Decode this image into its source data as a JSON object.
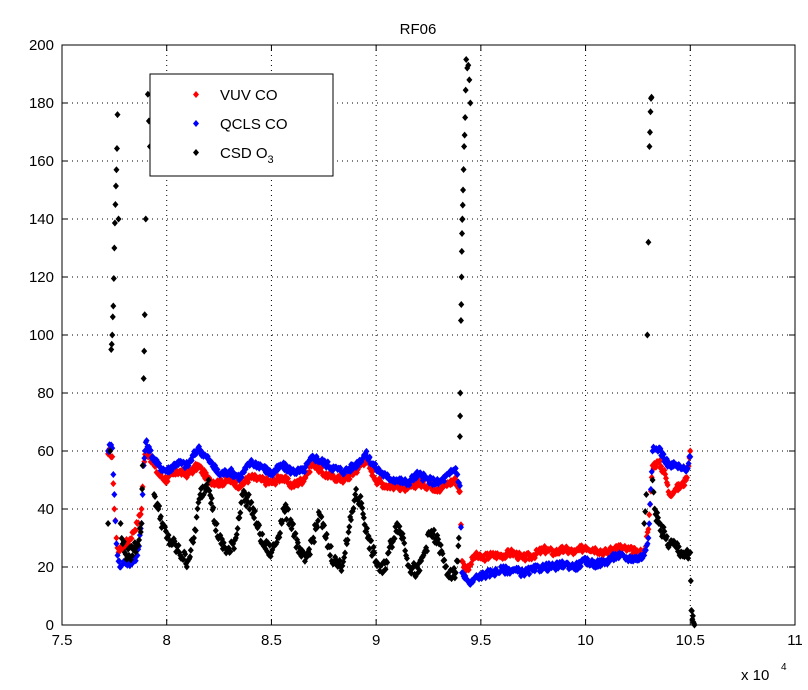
{
  "chart_data": {
    "type": "scatter",
    "title": "RF06",
    "xlabel": "",
    "ylabel": "",
    "x_multiplier_label": "x 10",
    "x_multiplier_exponent": "4",
    "xlim": [
      7.5,
      11
    ],
    "ylim": [
      0,
      200
    ],
    "xticks": [
      7.5,
      8,
      8.5,
      9,
      9.5,
      10,
      10.5,
      11
    ],
    "yticks": [
      0,
      20,
      40,
      60,
      80,
      100,
      120,
      140,
      160,
      180,
      200
    ],
    "xtick_labels": [
      "7.5",
      "8",
      "8.5",
      "9",
      "9.5",
      "10",
      "10.5",
      "11"
    ],
    "ytick_labels": [
      "0",
      "20",
      "40",
      "60",
      "80",
      "100",
      "120",
      "140",
      "160",
      "180",
      "200"
    ],
    "grid": true,
    "legend_position": "top-left",
    "legend": [
      {
        "label": "VUV CO",
        "color": "#ff0000"
      },
      {
        "label": "QCLS CO",
        "color": "#0000ff"
      },
      {
        "label": "CSD O",
        "subscript": "3",
        "color": "#000000"
      }
    ],
    "series": [
      {
        "name": "VUV CO",
        "color": "#ff0000",
        "x": [
          7.72,
          7.73,
          7.74,
          7.75,
          7.76,
          7.77,
          7.78,
          7.79,
          7.8,
          7.82,
          7.84,
          7.86,
          7.88,
          7.89,
          7.9,
          7.92,
          7.94,
          7.96,
          8.0,
          8.05,
          8.1,
          8.15,
          8.2,
          8.25,
          8.3,
          8.35,
          8.4,
          8.45,
          8.5,
          8.55,
          8.6,
          8.65,
          8.7,
          8.75,
          8.8,
          8.85,
          8.9,
          8.95,
          9.0,
          9.05,
          9.1,
          9.15,
          9.2,
          9.25,
          9.3,
          9.35,
          9.38,
          9.4,
          9.41,
          9.43,
          9.45,
          9.47,
          9.5,
          9.55,
          9.6,
          9.65,
          9.7,
          9.75,
          9.8,
          9.85,
          9.9,
          9.95,
          10.0,
          10.05,
          10.1,
          10.15,
          10.2,
          10.25,
          10.28,
          10.3,
          10.32,
          10.35,
          10.38,
          10.4,
          10.43,
          10.46,
          10.48,
          10.5
        ],
        "y": [
          59,
          60,
          58,
          40,
          30,
          25,
          27,
          26,
          28,
          29,
          32,
          35,
          40,
          55,
          60,
          58,
          55,
          52,
          50,
          53,
          52,
          55,
          50,
          49,
          50,
          48,
          51,
          50,
          49,
          51,
          48,
          50,
          56,
          52,
          51,
          50,
          53,
          57,
          50,
          48,
          48,
          47,
          49,
          48,
          47,
          49,
          50,
          46,
          22,
          19,
          21,
          24,
          23,
          24,
          24,
          25,
          23,
          24,
          26,
          25,
          26,
          25,
          27,
          26,
          25,
          27,
          26,
          25,
          25,
          33,
          55,
          56,
          52,
          45,
          47,
          48,
          50,
          60
        ]
      },
      {
        "name": "QCLS CO",
        "color": "#0000ff",
        "x": [
          7.72,
          7.73,
          7.74,
          7.75,
          7.76,
          7.77,
          7.78,
          7.79,
          7.8,
          7.82,
          7.84,
          7.86,
          7.88,
          7.89,
          7.9,
          7.92,
          7.94,
          7.96,
          8.0,
          8.05,
          8.1,
          8.15,
          8.2,
          8.25,
          8.3,
          8.35,
          8.4,
          8.45,
          8.5,
          8.55,
          8.6,
          8.65,
          8.7,
          8.75,
          8.8,
          8.85,
          8.9,
          8.95,
          9.0,
          9.05,
          9.1,
          9.15,
          9.2,
          9.25,
          9.3,
          9.35,
          9.38,
          9.4,
          9.41,
          9.43,
          9.45,
          9.47,
          9.5,
          9.55,
          9.6,
          9.65,
          9.7,
          9.75,
          9.8,
          9.85,
          9.9,
          9.95,
          10.0,
          10.05,
          10.1,
          10.15,
          10.2,
          10.25,
          10.28,
          10.3,
          10.32,
          10.35,
          10.38,
          10.4,
          10.43,
          10.46,
          10.48,
          10.5
        ],
        "y": [
          60,
          62,
          61,
          45,
          28,
          22,
          20,
          21,
          22,
          21,
          22,
          24,
          35,
          55,
          63,
          60,
          57,
          55,
          53,
          56,
          55,
          61,
          57,
          52,
          53,
          51,
          56,
          55,
          52,
          55,
          53,
          53,
          58,
          56,
          54,
          53,
          55,
          59,
          54,
          51,
          50,
          49,
          52,
          50,
          49,
          52,
          54,
          48,
          18,
          16,
          14,
          16,
          17,
          18,
          19,
          19,
          18,
          19,
          20,
          20,
          21,
          20,
          22,
          21,
          22,
          24,
          23,
          23,
          24,
          30,
          60,
          61,
          57,
          55,
          55,
          54,
          53,
          58
        ]
      },
      {
        "name": "CSD O3",
        "color": "#000000",
        "x": [
          7.72,
          7.73,
          7.735,
          7.74,
          7.745,
          7.75,
          7.755,
          7.76,
          7.765,
          7.77,
          7.78,
          7.79,
          7.8,
          7.82,
          7.84,
          7.86,
          7.88,
          7.885,
          7.89,
          7.895,
          7.9,
          7.91,
          7.92,
          7.94,
          7.96,
          7.98,
          8.0,
          8.03,
          8.06,
          8.1,
          8.13,
          8.16,
          8.2,
          8.23,
          8.26,
          8.3,
          8.33,
          8.36,
          8.4,
          8.43,
          8.46,
          8.5,
          8.53,
          8.56,
          8.6,
          8.63,
          8.66,
          8.7,
          8.73,
          8.76,
          8.8,
          8.83,
          8.86,
          8.9,
          8.93,
          8.96,
          9.0,
          9.03,
          9.06,
          9.1,
          9.13,
          9.16,
          9.2,
          9.23,
          9.26,
          9.3,
          9.33,
          9.36,
          9.38,
          9.39,
          9.395,
          9.4,
          9.402,
          9.405,
          9.408,
          9.41,
          9.412,
          9.415,
          9.42,
          9.425,
          9.43,
          9.44,
          9.45,
          10.28,
          10.29,
          10.295,
          10.3,
          10.305,
          10.31,
          10.315,
          10.32,
          10.33,
          10.35,
          10.38,
          10.4,
          10.43,
          10.46,
          10.48,
          10.49,
          10.5,
          10.505,
          10.51,
          10.515,
          10.52
        ],
        "y": [
          35,
          60,
          95,
          100,
          110,
          130,
          145,
          157,
          176,
          140,
          35,
          28,
          25,
          24,
          26,
          28,
          35,
          55,
          85,
          107,
          140,
          183,
          165,
          45,
          40,
          35,
          30,
          28,
          25,
          22,
          30,
          45,
          50,
          35,
          28,
          25,
          30,
          45,
          42,
          35,
          28,
          25,
          30,
          40,
          35,
          25,
          22,
          30,
          38,
          30,
          22,
          20,
          28,
          45,
          42,
          30,
          22,
          18,
          25,
          35,
          30,
          20,
          18,
          25,
          32,
          28,
          20,
          16,
          18,
          22,
          30,
          65,
          80,
          105,
          120,
          135,
          140,
          150,
          165,
          175,
          195,
          193,
          180,
          35,
          45,
          100,
          132,
          165,
          177,
          182,
          50,
          40,
          35,
          30,
          28,
          27,
          25,
          24,
          23,
          25,
          5,
          2,
          1,
          0
        ]
      }
    ]
  }
}
